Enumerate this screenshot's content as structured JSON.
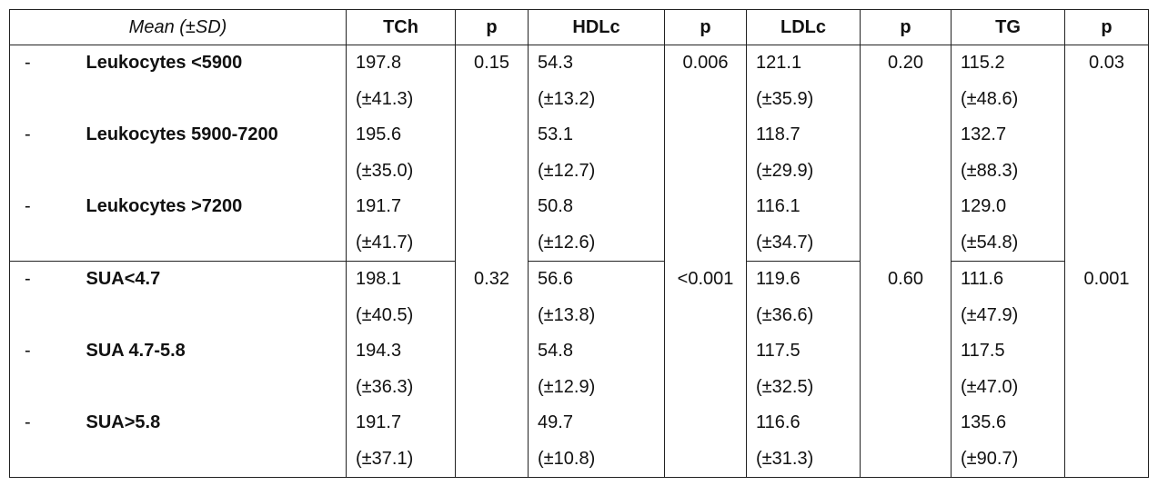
{
  "header": {
    "label": "Mean (±SD)",
    "columns": [
      "TCh",
      "p",
      "HDLc",
      "p",
      "LDLc",
      "p",
      "TG",
      "p"
    ]
  },
  "groups": [
    {
      "p": [
        "0.15",
        "0.006",
        "0.20",
        "0.03"
      ],
      "rows": [
        {
          "marker": "-",
          "label": "Leukocytes <5900",
          "cells": [
            {
              "mean": "197.8",
              "sd": "(±41.3)"
            },
            {
              "mean": "54.3",
              "sd": "(±13.2)"
            },
            {
              "mean": "121.1",
              "sd": "(±35.9)"
            },
            {
              "mean": "115.2",
              "sd": "(±48.6)"
            }
          ]
        },
        {
          "marker": "-",
          "label": "Leukocytes 5900-7200",
          "cells": [
            {
              "mean": "195.6",
              "sd": "(±35.0)"
            },
            {
              "mean": "53.1",
              "sd": "(±12.7)"
            },
            {
              "mean": "118.7",
              "sd": "(±29.9)"
            },
            {
              "mean": "132.7",
              "sd": "(±88.3)"
            }
          ]
        },
        {
          "marker": "-",
          "label": "Leukocytes >7200",
          "cells": [
            {
              "mean": "191.7",
              "sd": "(±41.7)"
            },
            {
              "mean": "50.8",
              "sd": "(±12.6)"
            },
            {
              "mean": "116.1",
              "sd": "(±34.7)"
            },
            {
              "mean": "129.0",
              "sd": "(±54.8)"
            }
          ]
        }
      ]
    },
    {
      "p": [
        "0.32",
        "<0.001",
        "0.60",
        "0.001"
      ],
      "rows": [
        {
          "marker": "-",
          "label": "SUA<4.7",
          "cells": [
            {
              "mean": "198.1",
              "sd": "(±40.5)"
            },
            {
              "mean": "56.6",
              "sd": "(±13.8)"
            },
            {
              "mean": "119.6",
              "sd": "(±36.6)"
            },
            {
              "mean": "111.6",
              "sd": "(±47.9)"
            }
          ]
        },
        {
          "marker": "-",
          "label": "SUA 4.7-5.8",
          "cells": [
            {
              "mean": "194.3",
              "sd": "(±36.3)"
            },
            {
              "mean": "54.8",
              "sd": "(±12.9)"
            },
            {
              "mean": "117.5",
              "sd": "(±32.5)"
            },
            {
              "mean": "117.5",
              "sd": "(±47.0)"
            }
          ]
        },
        {
          "marker": "-",
          "label": "SUA>5.8",
          "cells": [
            {
              "mean": "191.7",
              "sd": "(±37.1)"
            },
            {
              "mean": "49.7",
              "sd": "(±10.8)"
            },
            {
              "mean": "116.6",
              "sd": "(±31.3)"
            },
            {
              "mean": "135.6",
              "sd": "(±90.7)"
            }
          ]
        }
      ]
    }
  ]
}
